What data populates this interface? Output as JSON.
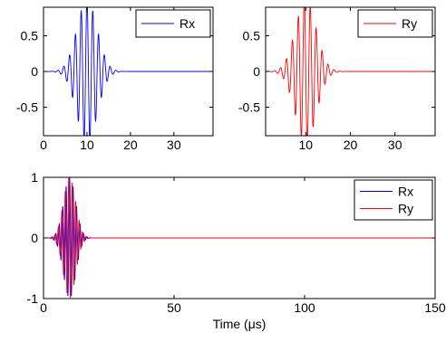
{
  "chart_data": [
    {
      "type": "line",
      "title": "",
      "xlabel": "",
      "ylabel": "",
      "xlim": [
        0,
        39
      ],
      "ylim": [
        -0.9,
        0.9
      ],
      "xticks": [
        0,
        10,
        20,
        30
      ],
      "xtick_labels": [
        "0",
        "10",
        "20",
        "30"
      ],
      "yticks": [
        0.5,
        0,
        -0.5
      ],
      "ytick_labels": [
        "0.5",
        "0",
        "-0.5"
      ],
      "grid": false,
      "legend_position": "top-right",
      "signal": {
        "center": 10,
        "frequency": 0.75,
        "envelope_width": 3.3,
        "end": 20
      },
      "series": [
        {
          "name": "Rx",
          "color": "#0000ff",
          "peak_amplitude": 1.0,
          "phase": 0
        }
      ]
    },
    {
      "type": "line",
      "title": "",
      "xlabel": "",
      "ylabel": "",
      "xlim": [
        1,
        39
      ],
      "ylim": [
        -0.9,
        0.9
      ],
      "xticks": [
        10,
        20,
        30
      ],
      "xtick_labels": [
        "10",
        "20",
        "30"
      ],
      "yticks": [
        0.5,
        0,
        -0.5
      ],
      "ytick_labels": [
        "0.5",
        "0",
        "-0.5"
      ],
      "grid": false,
      "legend_position": "top-right",
      "signal": {
        "center": 10,
        "frequency": 0.75,
        "envelope_width": 3.3,
        "end": 20
      },
      "series": [
        {
          "name": "Ry",
          "color": "#ff0000",
          "peak_amplitude": 1.0,
          "phase": 1.57
        }
      ]
    },
    {
      "type": "line",
      "title": "",
      "xlabel": "Time (μs)",
      "ylabel": "",
      "xlim": [
        0,
        150
      ],
      "ylim": [
        -1,
        1
      ],
      "xticks": [
        0,
        50,
        100,
        150
      ],
      "xtick_labels": [
        "0",
        "50",
        "100",
        "150"
      ],
      "yticks": [
        1,
        0,
        -1
      ],
      "ytick_labels": [
        "1",
        "0",
        "-1"
      ],
      "grid": false,
      "legend_position": "top-right",
      "signal": {
        "center": 10,
        "frequency": 0.75,
        "envelope_width": 3.3,
        "end": 20
      },
      "series": [
        {
          "name": "Rx",
          "color": "#0000ff",
          "peak_amplitude": 1.0,
          "phase": 0
        },
        {
          "name": "Ry",
          "color": "#ff0000",
          "peak_amplitude": 1.0,
          "phase": 1.57
        }
      ]
    }
  ]
}
